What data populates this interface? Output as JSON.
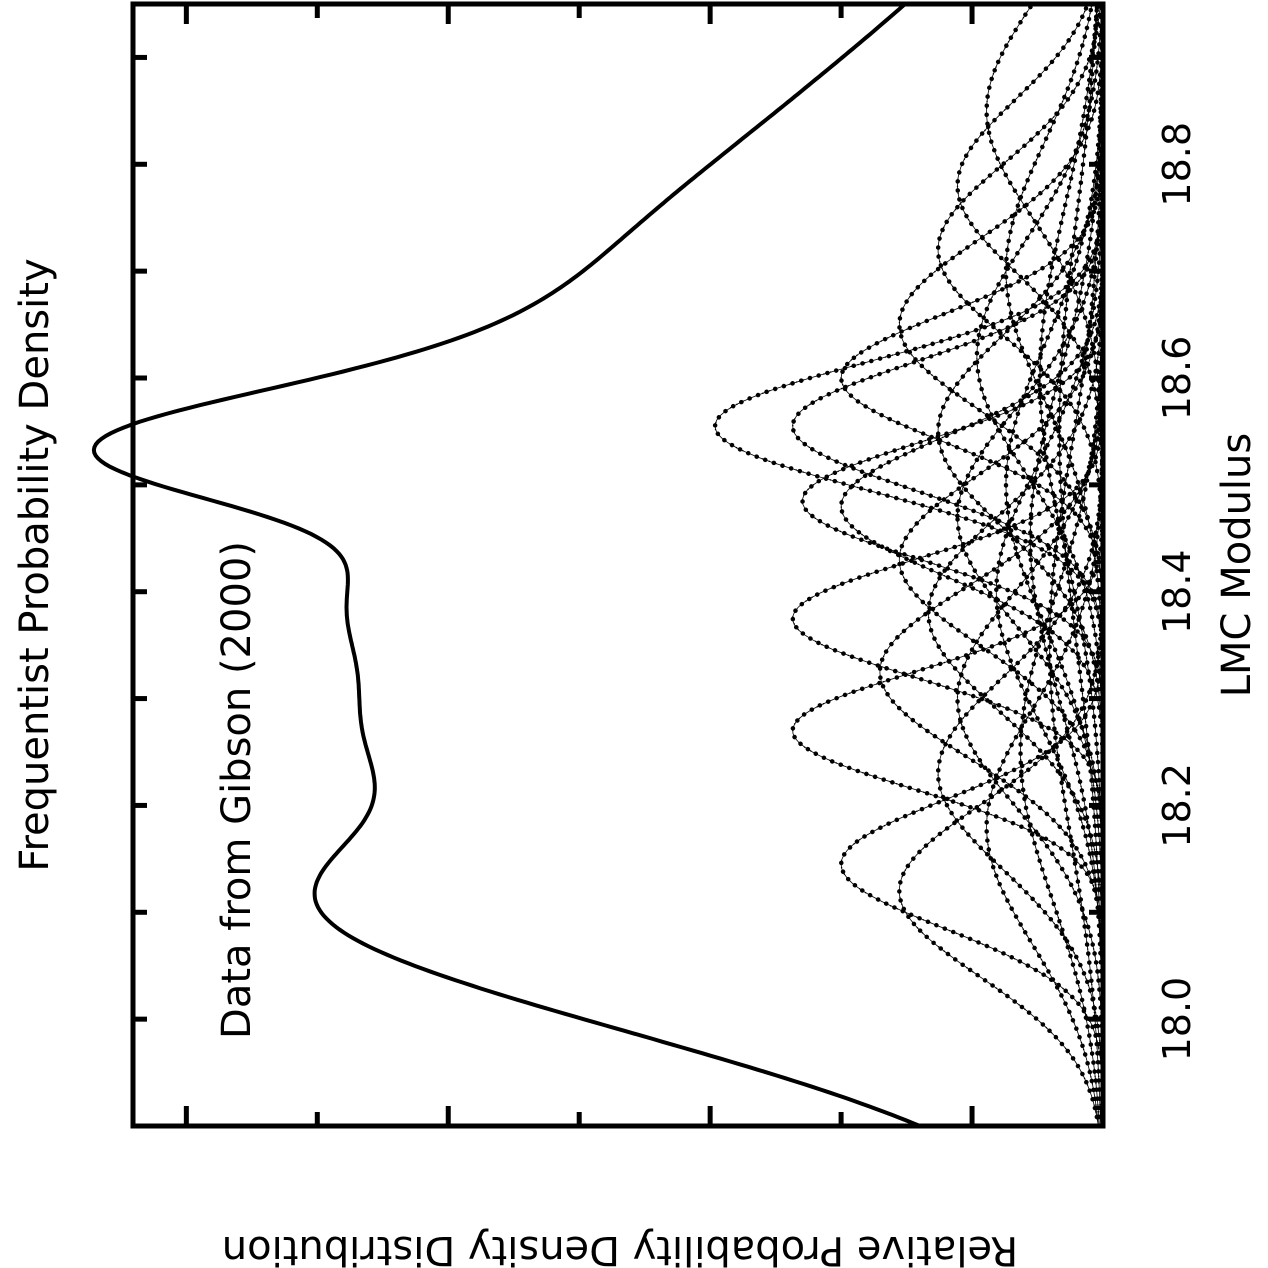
{
  "chart_data": {
    "type": "line",
    "title": "Frequentist Probability Density",
    "xlabel": "LMC Modulus",
    "ylabel": "Relative Probability Density Distribution",
    "annotation": "Data from Gibson (2000)",
    "xlim": [
      17.9,
      18.95
    ],
    "ylim": [
      0,
      1.0
    ],
    "x_ticks": [
      18.0,
      18.2,
      18.4,
      18.6,
      18.8
    ],
    "x_tick_labels": [
      "18.0",
      "18.2",
      "18.4",
      "18.6",
      "18.8"
    ],
    "grid": false,
    "total_curve": {
      "style": "solid-thick",
      "components": [
        {
          "mu": 18.01,
          "sigma": 0.1,
          "amp": 0.22
        },
        {
          "mu": 18.08,
          "sigma": 0.1,
          "amp": 0.32
        },
        {
          "mu": 18.15,
          "sigma": 0.085,
          "amp": 0.4
        },
        {
          "mu": 18.27,
          "sigma": 0.062,
          "amp": 0.39
        },
        {
          "mu": 18.36,
          "sigma": 0.065,
          "amp": 0.38
        },
        {
          "mu": 18.43,
          "sigma": 0.065,
          "amp": 0.38
        },
        {
          "mu": 18.525,
          "sigma": 0.05,
          "amp": 0.38
        },
        {
          "mu": 18.56,
          "sigma": 0.065,
          "amp": 0.3
        },
        {
          "mu": 18.63,
          "sigma": 0.11,
          "amp": 0.32
        },
        {
          "mu": 18.76,
          "sigma": 0.13,
          "amp": 0.24
        },
        {
          "mu": 18.92,
          "sigma": 0.13,
          "amp": 0.12
        }
      ]
    },
    "individual_curves": {
      "style": "thin-dotted",
      "series": [
        {
          "mu": 18.555,
          "sigma": 0.06,
          "amp": 0.4
        },
        {
          "mu": 18.27,
          "sigma": 0.055,
          "amp": 0.32
        },
        {
          "mu": 18.375,
          "sigma": 0.055,
          "amp": 0.32
        },
        {
          "mu": 18.485,
          "sigma": 0.055,
          "amp": 0.31
        },
        {
          "mu": 18.555,
          "sigma": 0.06,
          "amp": 0.32
        },
        {
          "mu": 18.145,
          "sigma": 0.06,
          "amp": 0.27
        },
        {
          "mu": 18.6,
          "sigma": 0.06,
          "amp": 0.27
        },
        {
          "mu": 18.48,
          "sigma": 0.065,
          "amp": 0.27
        },
        {
          "mu": 18.325,
          "sigma": 0.08,
          "amp": 0.23
        },
        {
          "mu": 18.12,
          "sigma": 0.08,
          "amp": 0.21
        },
        {
          "mu": 18.43,
          "sigma": 0.08,
          "amp": 0.21
        },
        {
          "mu": 18.65,
          "sigma": 0.08,
          "amp": 0.21
        },
        {
          "mu": 18.72,
          "sigma": 0.08,
          "amp": 0.17
        },
        {
          "mu": 18.78,
          "sigma": 0.08,
          "amp": 0.15
        },
        {
          "mu": 18.23,
          "sigma": 0.09,
          "amp": 0.17
        },
        {
          "mu": 18.38,
          "sigma": 0.09,
          "amp": 0.18
        },
        {
          "mu": 18.55,
          "sigma": 0.09,
          "amp": 0.17
        },
        {
          "mu": 18.85,
          "sigma": 0.1,
          "amp": 0.12
        },
        {
          "mu": 18.3,
          "sigma": 0.1,
          "amp": 0.15
        },
        {
          "mu": 18.47,
          "sigma": 0.1,
          "amp": 0.15
        },
        {
          "mu": 18.18,
          "sigma": 0.11,
          "amp": 0.12
        },
        {
          "mu": 18.62,
          "sigma": 0.11,
          "amp": 0.13
        },
        {
          "mu": 18.4,
          "sigma": 0.12,
          "amp": 0.11
        },
        {
          "mu": 18.5,
          "sigma": 0.13,
          "amp": 0.1
        },
        {
          "mu": 18.7,
          "sigma": 0.12,
          "amp": 0.1
        },
        {
          "mu": 18.25,
          "sigma": 0.14,
          "amp": 0.085
        },
        {
          "mu": 18.45,
          "sigma": 0.15,
          "amp": 0.075
        },
        {
          "mu": 18.6,
          "sigma": 0.16,
          "amp": 0.065
        },
        {
          "mu": 18.35,
          "sigma": 0.18,
          "amp": 0.055
        },
        {
          "mu": 18.55,
          "sigma": 0.2,
          "amp": 0.045
        }
      ]
    }
  }
}
